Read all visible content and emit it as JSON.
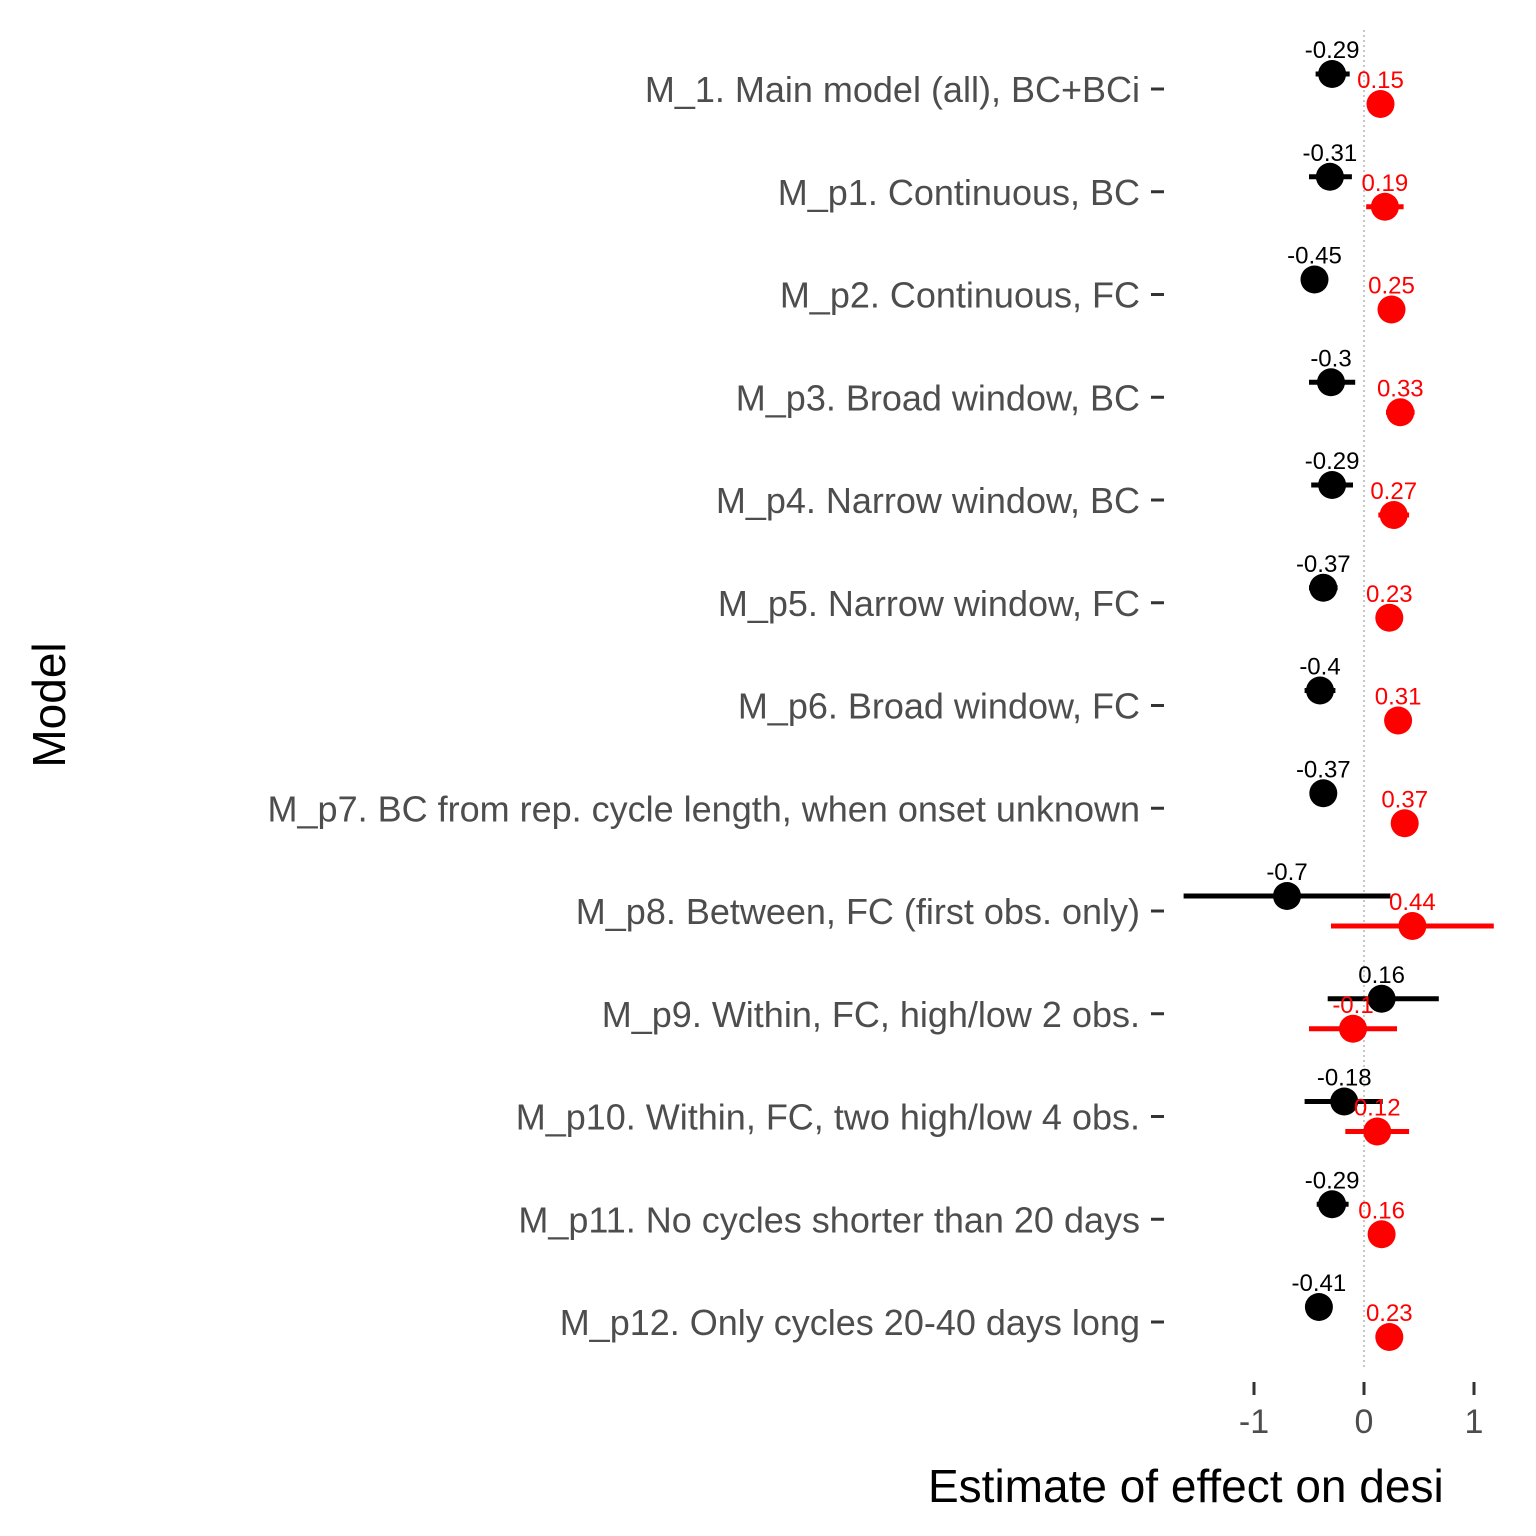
{
  "chart_data": {
    "type": "scatter",
    "title": "",
    "xlabel": "Estimate of effect on desi",
    "ylabel": "Model",
    "xlim": [
      -1.64,
      1.47
    ],
    "x_ticks": [
      -1,
      0,
      1
    ],
    "x_tick_labels": [
      "-1",
      "0",
      "1"
    ],
    "reference_line_x": 0,
    "grid": false,
    "legend": "none",
    "categories": [
      "M_1. Main model (all), BC+BCi",
      "M_p1. Continuous, BC",
      "M_p2. Continuous, FC",
      "M_p3. Broad window, BC",
      "M_p4. Narrow window, BC",
      "M_p5. Narrow window, FC",
      "M_p6. Broad window, FC",
      "M_p7. BC from rep. cycle length, when onset unknown",
      "M_p8. Between, FC (first obs. only)",
      "M_p9. Within, FC, high/low 2 obs.",
      "M_p10. Within, FC, two high/low 4 obs.",
      "M_p11. No cycles shorter than 20 days",
      "M_p12. Only cycles 20-40 days long"
    ],
    "series": [
      {
        "color": "#000000",
        "values": [
          -0.29,
          -0.31,
          -0.45,
          -0.3,
          -0.29,
          -0.37,
          -0.4,
          -0.37,
          -0.7,
          0.16,
          -0.18,
          -0.29,
          -0.41
        ],
        "value_labels": [
          "-0.29",
          "-0.31",
          "-0.45",
          "-0.3",
          "-0.29",
          "-0.37",
          "-0.4",
          "-0.37",
          "-0.7",
          "0.16",
          "-0.18",
          "-0.29",
          "-0.41"
        ],
        "lower": [
          -0.44,
          -0.5,
          -0.56,
          -0.5,
          -0.48,
          -0.5,
          -0.54,
          -0.42,
          -1.64,
          -0.33,
          -0.54,
          -0.43,
          -0.52
        ],
        "upper": [
          -0.13,
          -0.11,
          -0.33,
          -0.08,
          -0.1,
          -0.24,
          -0.26,
          -0.32,
          0.24,
          0.68,
          0.17,
          -0.14,
          -0.3
        ]
      },
      {
        "color": "#ff0000",
        "values": [
          0.15,
          0.19,
          0.25,
          0.33,
          0.27,
          0.23,
          0.31,
          0.37,
          0.44,
          -0.1,
          0.12,
          0.16,
          0.23
        ],
        "value_labels": [
          "0.15",
          "0.19",
          "0.25",
          "0.33",
          "0.27",
          "0.23",
          "0.31",
          "0.37",
          "0.44",
          "-0.1",
          "0.12",
          "0.16",
          "0.23"
        ],
        "lower": [
          0.1,
          0.02,
          0.2,
          0.2,
          0.13,
          0.17,
          0.24,
          0.31,
          -0.3,
          -0.5,
          -0.17,
          0.11,
          0.17
        ],
        "upper": [
          0.2,
          0.36,
          0.3,
          0.46,
          0.41,
          0.29,
          0.38,
          0.43,
          1.18,
          0.3,
          0.41,
          0.21,
          0.29
        ]
      }
    ]
  }
}
